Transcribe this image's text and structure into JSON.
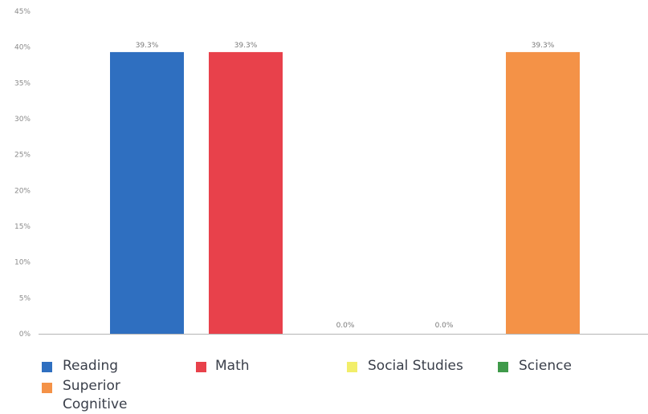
{
  "chart_data": {
    "type": "bar",
    "title": "",
    "xlabel": "",
    "ylabel": "",
    "ylim": [
      0,
      45
    ],
    "yticks": [
      0,
      5,
      10,
      15,
      20,
      25,
      30,
      35,
      40,
      45
    ],
    "ytick_labels": [
      "0%",
      "5%",
      "10%",
      "15%",
      "20%",
      "25%",
      "30%",
      "35%",
      "40%",
      "45%"
    ],
    "grid": false,
    "legend_position": "bottom",
    "categories": [
      ""
    ],
    "series": [
      {
        "name": "Reading",
        "values": [
          39.3
        ],
        "label": "39.3%",
        "color": "#2f6fc0"
      },
      {
        "name": "Math",
        "values": [
          39.3
        ],
        "label": "39.3%",
        "color": "#e8414b"
      },
      {
        "name": "Social Studies",
        "values": [
          0
        ],
        "label": "0.0%",
        "color": "#f2ee6a"
      },
      {
        "name": "Science",
        "values": [
          0
        ],
        "label": "0.0%",
        "color": "#3f9a4a"
      },
      {
        "name": "Superior Cognitive",
        "values": [
          39.3
        ],
        "label": "39.3%",
        "color": "#f49247"
      }
    ]
  }
}
